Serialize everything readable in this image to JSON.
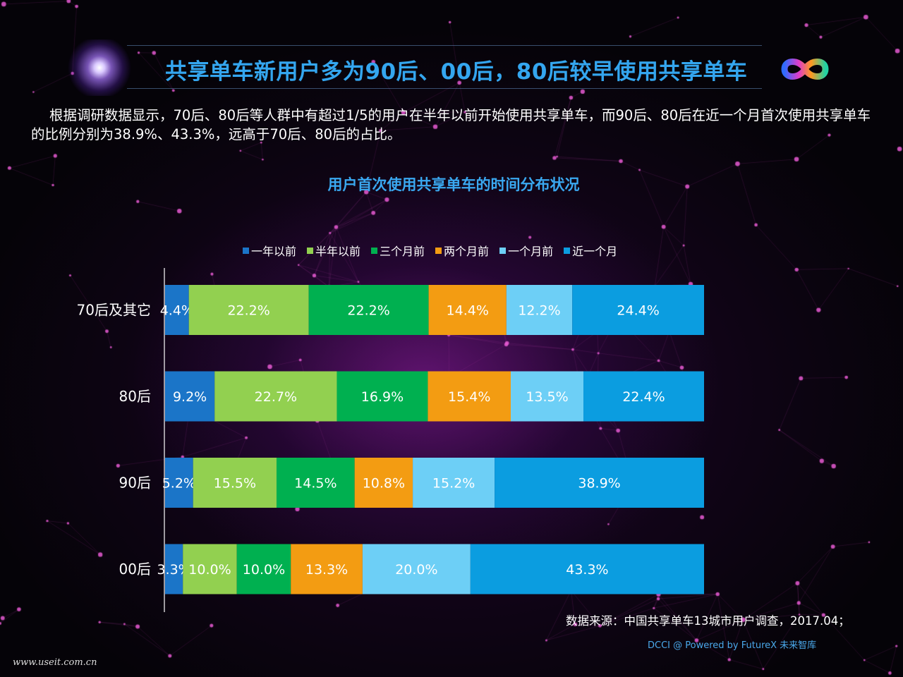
{
  "header": {
    "title": "共享单车新用户多为90后、00后，80后较早使用共享单车",
    "description": "根据调研数据显示，70后、80后等人群中有超过1/5的用户在半年以前开始使用共享单车，而90后、80后在近一个月首次使用共享单车的比例分别为38.9%、43.3%，远高于70后、80后的占比。"
  },
  "logo": {
    "icon": "infinity-logo-icon"
  },
  "chart_data": {
    "type": "bar",
    "orientation": "horizontal",
    "stacked": true,
    "title": "用户首次使用共享单车的时间分布状况",
    "categories": [
      "70后及其它",
      "80后",
      "90后",
      "00后"
    ],
    "series": [
      {
        "name": "一年以前",
        "color": "#1b75c8",
        "values": [
          4.4,
          9.2,
          5.2,
          3.3
        ]
      },
      {
        "name": "半年以前",
        "color": "#92d050",
        "values": [
          22.2,
          22.7,
          15.5,
          10.0
        ]
      },
      {
        "name": "三个月前",
        "color": "#00b050",
        "values": [
          22.2,
          16.9,
          14.5,
          10.0
        ]
      },
      {
        "name": "两个月前",
        "color": "#f39c12",
        "values": [
          14.4,
          15.4,
          10.8,
          13.3
        ]
      },
      {
        "name": "一个月前",
        "color": "#6dcff6",
        "values": [
          12.2,
          13.5,
          15.2,
          20.0
        ]
      },
      {
        "name": "近一个月",
        "color": "#0b9de0",
        "values": [
          24.4,
          22.4,
          38.9,
          43.3
        ]
      }
    ],
    "xlim": [
      0,
      100
    ],
    "value_suffix": "%",
    "legend_position": "top",
    "grid": false
  },
  "footer": {
    "source": "数据来源：中国共享单车13城市用户调查，2017.04；",
    "credit": "DCCI @ Powered by FutureX 未来智库",
    "watermark": "www.useit.com.cn"
  }
}
